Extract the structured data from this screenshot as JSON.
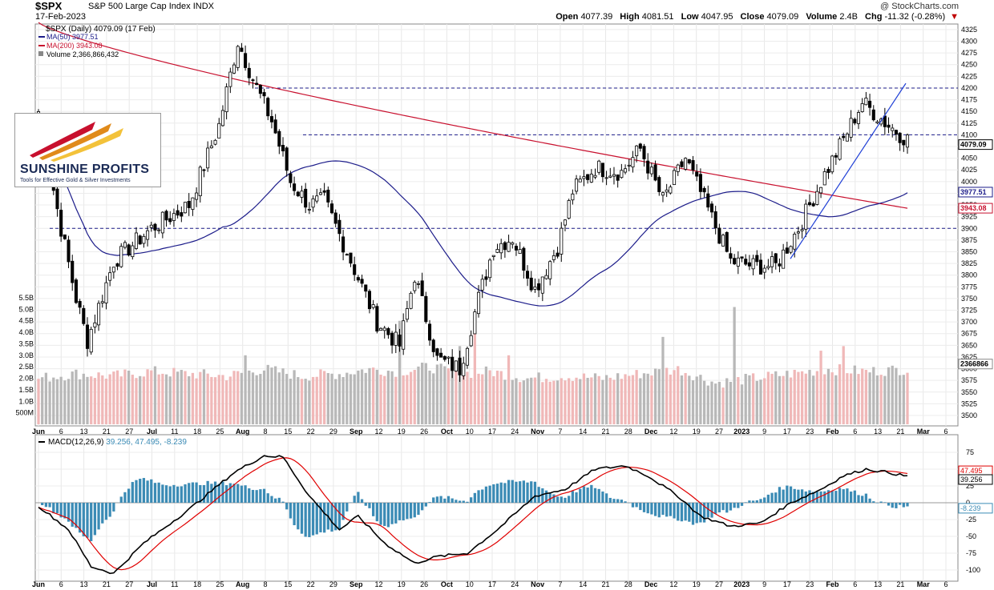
{
  "header": {
    "symbol": "$SPX",
    "name": "S&P 500 Large Cap Index",
    "exchange": "INDX",
    "date": "17-Feb-2023",
    "copyright": "@ StockCharts.com",
    "open_label": "Open",
    "open": "4077.39",
    "high_label": "High",
    "high": "4081.51",
    "low_label": "Low",
    "low": "4047.95",
    "close_label": "Close",
    "close": "4079.09",
    "volume_label": "Volume",
    "volume": "2.4B",
    "chg_label": "Chg",
    "chg": "-11.32 (-0.28%)"
  },
  "legend": {
    "price": "$SPX (Daily) 4079.09 (17 Feb)",
    "ma50": "MA(50) 3977.51",
    "ma200": "MA(200) 3943.08",
    "volume": "Volume 2,366,866,432",
    "macd_label": "MACD(12,26,9)",
    "macd_values": "39.256, 47.495, -8.239"
  },
  "logo": {
    "name": "SUNSHINE PROFITS",
    "tagline": "Tools for Effective Gold & Silver Investments"
  },
  "colors": {
    "candle": "#000000",
    "ma50": "#1c1c8a",
    "ma200": "#c8102e",
    "volume_up": "#f0b8b8",
    "volume_down": "#b8b8b8",
    "macd_line": "#000000",
    "signal_line": "#e00000",
    "histogram": "#3b8bb5",
    "guide_line": "#1c1c8a",
    "trend_line": "#1f3fd6"
  },
  "chart_data": {
    "type": "candlestick",
    "price_axis": {
      "ticks": [
        "4325",
        "4300",
        "4275",
        "4250",
        "4225",
        "4200",
        "4175",
        "4150",
        "4125",
        "4100",
        "4075",
        "4050",
        "4025",
        "4000",
        "3975",
        "3950",
        "3925",
        "3900",
        "3875",
        "3850",
        "3825",
        "3800",
        "3775",
        "3750",
        "3725",
        "3700",
        "3675",
        "3650",
        "3625",
        "3600",
        "3575",
        "3550",
        "3525",
        "3500"
      ],
      "ylim": [
        3485,
        4340
      ]
    },
    "volume_axis": {
      "ticks": [
        "5.5B",
        "5.0B",
        "4.5B",
        "4.0B",
        "3.5B",
        "3.0B",
        "2.5B",
        "2.0B",
        "1.5B",
        "1.0B",
        "500M"
      ],
      "max": 5.5
    },
    "x_axis": {
      "labels": [
        "Jun",
        "6",
        "13",
        "21",
        "27",
        "Jul",
        "11",
        "18",
        "25",
        "Aug",
        "8",
        "15",
        "22",
        "29",
        "Sep",
        "12",
        "19",
        "26",
        "Oct",
        "10",
        "17",
        "24",
        "Nov",
        "7",
        "14",
        "21",
        "28",
        "Dec",
        "12",
        "19",
        "27",
        "2023",
        "9",
        "17",
        "23",
        "Feb",
        "6",
        "13",
        "21",
        "Mar",
        "6"
      ],
      "bold": [
        "Jun",
        "Jul",
        "Aug",
        "Sep",
        "Oct",
        "Nov",
        "Dec",
        "2023",
        "Feb",
        "Mar"
      ]
    },
    "horizontal_levels": [
      4200,
      4100,
      3900
    ],
    "trend_line": {
      "from": [
        "2022-12-28",
        3835
      ],
      "to": [
        "2023-02-17",
        4210
      ]
    },
    "price_labels": {
      "close": "4079.09",
      "ma50": "3977.51",
      "ma200": "3943.08",
      "volume": "2366866"
    },
    "macd_axis": {
      "ticks": [
        "75",
        "50",
        "25",
        "0",
        "-25",
        "-50",
        "-75",
        "-100"
      ],
      "ylim": [
        -110,
        95
      ]
    },
    "macd_labels": {
      "signal": "47.495",
      "macd": "39.256",
      "hist": "-8.239"
    },
    "price_anchors": [
      [
        0,
        4150
      ],
      [
        6,
        3900
      ],
      [
        10,
        3750
      ],
      [
        13,
        3660
      ],
      [
        20,
        3830
      ],
      [
        30,
        3900
      ],
      [
        40,
        3950
      ],
      [
        48,
        4120
      ],
      [
        53,
        4300
      ],
      [
        58,
        4200
      ],
      [
        62,
        4130
      ],
      [
        67,
        4000
      ],
      [
        72,
        3950
      ],
      [
        76,
        3960
      ],
      [
        82,
        3850
      ],
      [
        90,
        3700
      ],
      [
        96,
        3650
      ],
      [
        100,
        3800
      ],
      [
        106,
        3620
      ],
      [
        112,
        3600
      ],
      [
        117,
        3750
      ],
      [
        121,
        3860
      ],
      [
        126,
        3880
      ],
      [
        132,
        3770
      ],
      [
        138,
        3860
      ],
      [
        142,
        3980
      ],
      [
        148,
        4030
      ],
      [
        155,
        4020
      ],
      [
        160,
        4070
      ],
      [
        166,
        3960
      ],
      [
        172,
        4050
      ],
      [
        178,
        3940
      ],
      [
        184,
        3830
      ],
      [
        190,
        3820
      ],
      [
        196,
        3820
      ],
      [
        202,
        3900
      ],
      [
        208,
        4000
      ],
      [
        214,
        4090
      ],
      [
        219,
        4170
      ],
      [
        226,
        4120
      ],
      [
        231,
        4090
      ]
    ],
    "volume_anchors": [
      [
        0,
        2.0
      ],
      [
        10,
        2.2
      ],
      [
        20,
        2.1
      ],
      [
        30,
        2.3
      ],
      [
        40,
        2.2
      ],
      [
        50,
        2.1
      ],
      [
        60,
        2.4
      ],
      [
        70,
        2.1
      ],
      [
        80,
        2.2
      ],
      [
        88,
        2.4
      ],
      [
        96,
        2.3
      ],
      [
        104,
        2.5
      ],
      [
        112,
        2.2
      ],
      [
        120,
        2.3
      ],
      [
        130,
        2.0
      ],
      [
        140,
        2.1
      ],
      [
        150,
        2.0
      ],
      [
        160,
        2.2
      ],
      [
        170,
        2.4
      ],
      [
        180,
        1.8
      ],
      [
        190,
        2.0
      ],
      [
        200,
        2.2
      ],
      [
        210,
        2.4
      ],
      [
        220,
        2.3
      ],
      [
        231,
        2.4
      ]
    ],
    "volume_spikes": {
      "55": 3.0,
      "96": 4.5,
      "112": 3.4,
      "116": 4.0,
      "125": 3.0,
      "166": 3.8,
      "185": 5.1,
      "208": 3.2,
      "214": 3.4
    },
    "macd_anchors": [
      [
        0,
        -5
      ],
      [
        8,
        -40
      ],
      [
        14,
        -95
      ],
      [
        20,
        -105
      ],
      [
        28,
        -60
      ],
      [
        40,
        -10
      ],
      [
        52,
        45
      ],
      [
        60,
        70
      ],
      [
        65,
        68
      ],
      [
        72,
        10
      ],
      [
        80,
        -40
      ],
      [
        85,
        -20
      ],
      [
        92,
        -60
      ],
      [
        100,
        -90
      ],
      [
        106,
        -80
      ],
      [
        114,
        -75
      ],
      [
        122,
        -40
      ],
      [
        132,
        10
      ],
      [
        140,
        20
      ],
      [
        148,
        50
      ],
      [
        156,
        55
      ],
      [
        162,
        40
      ],
      [
        170,
        10
      ],
      [
        176,
        -20
      ],
      [
        184,
        -35
      ],
      [
        192,
        -30
      ],
      [
        200,
        0
      ],
      [
        208,
        20
      ],
      [
        214,
        40
      ],
      [
        220,
        50
      ],
      [
        226,
        45
      ],
      [
        231,
        39
      ]
    ],
    "num_bars": 232
  }
}
